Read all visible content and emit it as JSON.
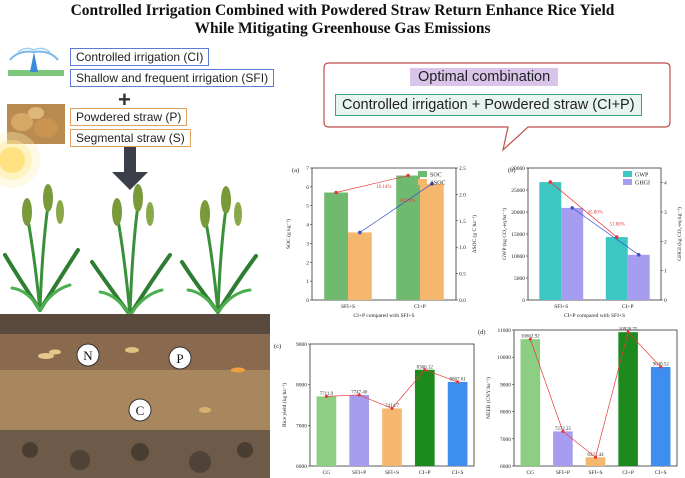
{
  "title_line1": "Controlled Irrigation Combined with Powdered Straw Return Enhance Rice Yield",
  "title_line2": "While Mitigating Greenhouse Gas Emissions",
  "legend": {
    "ci": "Controlled irrigation (CI)",
    "sfi": "Shallow and frequent irrigation (SFI)",
    "p": "Powdered straw (P)",
    "s": "Segmental straw (S)",
    "plus": "+"
  },
  "callout": {
    "line1": "Optimal combination",
    "line2": "Controlled irrigation + Powdered straw (CI+P)"
  },
  "soil_labels": [
    "N",
    "P",
    "C"
  ],
  "colors": {
    "green": "#6fba6f",
    "orange": "#f5b66e",
    "teal": "#3cc7c2",
    "lavender": "#a69cf0",
    "darkgreen": "#1c8a1c",
    "cs_green": "#8ccf82",
    "blue_line": "#3b52c9",
    "red_line": "#e83a3a"
  },
  "chart_data": [
    {
      "panel": "(a)",
      "type": "bar",
      "categories": [
        "SFI+S",
        "CI+P"
      ],
      "xlabel": "CI+P compared with SFI+S",
      "ylabel": "SOC (g kg⁻¹)",
      "ylabel_right": "ΔSOC (g C ha⁻¹)",
      "ylim": [
        0,
        7
      ],
      "ylim_right": [
        0,
        2.5
      ],
      "yticks": [
        "0",
        "1",
        "2",
        "3",
        "4",
        "5",
        "6",
        "7"
      ],
      "yticks_right": [
        "0.0",
        "0.5",
        "1.0",
        "1.5",
        "2.0",
        "2.5"
      ],
      "series": [
        {
          "name": "SOC",
          "values": [
            5.7,
            6.6
          ],
          "axis": "left"
        },
        {
          "name": "ΔSOC",
          "values": [
            1.28,
            2.2
          ],
          "axis": "right"
        }
      ],
      "annotations": [
        "16.14%",
        "69.34%"
      ]
    },
    {
      "panel": "(b)",
      "type": "bar",
      "categories": [
        "SFI+S",
        "CI+P"
      ],
      "xlabel": "CI+P compared with SFI+S",
      "ylabel": "GWP (kg CO₂-eq ha⁻¹)",
      "ylabel_right": "GHGI (kg CO₂-eq kg⁻¹)",
      "ylim": [
        0,
        30000
      ],
      "ylim_right": [
        0,
        4.5
      ],
      "yticks": [
        "0",
        "5000",
        "10000",
        "15000",
        "20000",
        "25000",
        "30000"
      ],
      "yticks_right": [
        "0",
        "1",
        "2",
        "3",
        "4"
      ],
      "series": [
        {
          "name": "GWP",
          "values": [
            26800,
            14300
          ],
          "axis": "left"
        },
        {
          "name": "GHGI",
          "values": [
            3.14,
            1.54
          ],
          "axis": "right"
        }
      ],
      "annotations": [
        "45.80%",
        "51.88%"
      ]
    },
    {
      "panel": "(c)",
      "type": "bar",
      "categories": [
        "CG",
        "SFI+P",
        "SFI+S",
        "CI+P",
        "CI+S"
      ],
      "ylabel": "Rice yield (kg ha⁻¹)",
      "ylim": [
        6000,
        9000
      ],
      "yticks": [
        "6000",
        "7000",
        "8000",
        "9000"
      ],
      "values": [
        7711.9,
        7747.4,
        7414.7,
        8366.12,
        8067.61
      ],
      "labels": [
        "7711.9",
        "7747.40",
        "7414.7",
        "8366.12",
        "8067.61"
      ]
    },
    {
      "panel": "(d)",
      "type": "bar",
      "categories": [
        "CG",
        "SFI+P",
        "SFI+S",
        "CI+P",
        "CI+S"
      ],
      "ylabel": "NEEB (CNY ha⁻¹)",
      "ylim": [
        6000,
        11000
      ],
      "yticks": [
        "6000",
        "7000",
        "8000",
        "9000",
        "10000",
        "11000"
      ],
      "values": [
        10662.92,
        7272.25,
        6321.44,
        10920.75,
        9640.52
      ],
      "labels": [
        "10662.92",
        "7272.25",
        "6321.44",
        "10920.75",
        "9640.52"
      ]
    }
  ]
}
